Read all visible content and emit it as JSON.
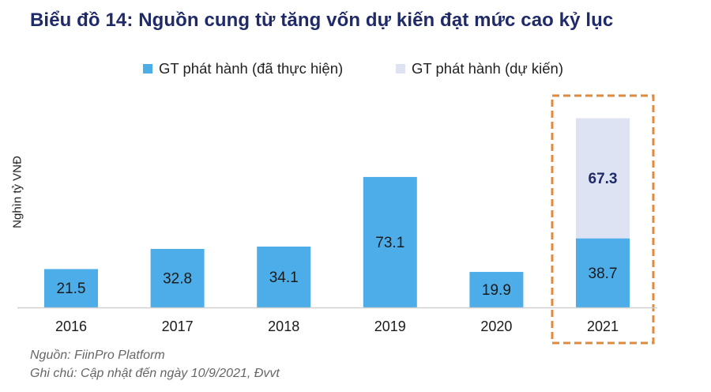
{
  "header": {
    "title": "Biểu đồ 14: Nguồn cung từ tăng vốn dự kiến đạt mức cao kỷ lục"
  },
  "footer": {
    "source": "Nguồn: FiinPro Platform",
    "note": "Ghi chú: Cập nhật đến ngày 10/9/2021, Đvvt"
  },
  "colors": {
    "actual": "#4dade8",
    "planned": "#dde3f3",
    "highlight": "#e08a3c",
    "title": "#1f2a68"
  },
  "chart_data": {
    "type": "bar",
    "stacked": true,
    "title": "Biểu đồ 14: Nguồn cung từ tăng vốn dự kiến đạt mức cao kỷ lục",
    "ylabel": "Nghìn tỷ VNĐ",
    "xlabel": "",
    "categories": [
      "2016",
      "2017",
      "2018",
      "2019",
      "2020",
      "2021"
    ],
    "series": [
      {
        "name": "GT phát hành (đã thực hiện)",
        "values": [
          21.5,
          32.8,
          34.1,
          73.1,
          19.9,
          38.7
        ],
        "labels": [
          "21.5",
          "32.8",
          "34.1",
          "73.1",
          "19.9",
          "38.7"
        ]
      },
      {
        "name": "GT phát hành (dự kiến)",
        "values": [
          0,
          0,
          0,
          0,
          0,
          67.3
        ],
        "labels": [
          "",
          "",
          "",
          "",
          "",
          "67.3"
        ]
      }
    ],
    "ylim": [
      0,
      120
    ],
    "legend": "top",
    "highlighted_category": "2021",
    "grid": false
  }
}
